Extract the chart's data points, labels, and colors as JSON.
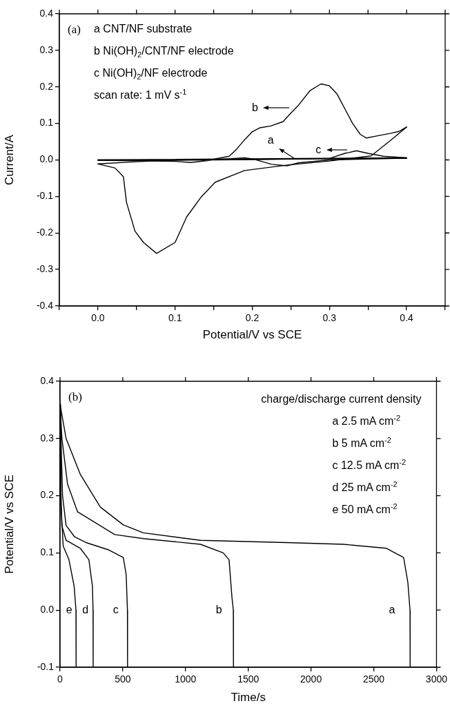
{
  "chart_data": [
    {
      "type": "line",
      "xlabel": "Potential/V vs SCE",
      "ylabel": "Current/A",
      "grid": false,
      "legend": false,
      "marker": "none",
      "line_style": "solid",
      "xlim": [
        -0.05,
        0.45
      ],
      "xticks": [
        {
          "value": -0.05,
          "label": null
        },
        {
          "value": 0,
          "label": "0.0"
        },
        {
          "value": 0.05,
          "label": null
        },
        0.1,
        {
          "value": 0.15,
          "label": null
        },
        0.2,
        {
          "value": 0.25,
          "label": null
        },
        0.3,
        {
          "value": 0.35,
          "label": null
        },
        0.4,
        {
          "value": 0.45,
          "label": null
        }
      ],
      "ylim": [
        -0.4,
        0.4
      ],
      "yticks": [
        -0.4,
        -0.3,
        -0.2,
        -0.1,
        {
          "value": 0,
          "label": "0.0"
        },
        0.1,
        0.2,
        0.3,
        0.4
      ],
      "series": [
        {
          "color": "#000000",
          "x": [
            0,
            0.256,
            0.4,
            0.4,
            0
          ],
          "values": [
            0,
            0.004,
            0.006,
            0.004,
            -0.001
          ]
        },
        {
          "color": "#000000",
          "x": [
            0,
            0.05,
            0.1,
            0.15,
            0.17,
            0.18,
            0.19,
            0.2,
            0.21,
            0.224,
            0.24,
            0.25,
            0.26,
            0.275,
            0.289,
            0.3,
            0.31,
            0.32,
            0.33,
            0.34,
            0.348,
            0.36,
            0.38,
            0.39,
            0.4
          ],
          "values": [
            -0.011,
            -0.005,
            0,
            0.002,
            0.01,
            0.03,
            0.055,
            0.077,
            0.088,
            0.093,
            0.105,
            0.128,
            0.15,
            0.19,
            0.208,
            0.203,
            0.18,
            0.14,
            0.1,
            0.07,
            0.06,
            0.065,
            0.073,
            0.078,
            0.09
          ]
        },
        {
          "color": "#000000",
          "x": [
            0.4,
            0.38,
            0.354,
            0.3,
            0.246,
            0.19,
            0.152,
            0.134,
            0.115,
            0.1,
            0.076,
            0.059,
            0.048,
            0.037,
            0.033,
            0.022,
            0
          ],
          "values": [
            0.09,
            0.055,
            0.011,
            -0.003,
            -0.014,
            -0.029,
            -0.061,
            -0.101,
            -0.156,
            -0.226,
            -0.256,
            -0.226,
            -0.195,
            -0.116,
            -0.046,
            -0.022,
            -0.011
          ]
        },
        {
          "color": "#000000",
          "x": [
            0,
            0.1,
            0.2,
            0.3,
            0.32,
            0.325,
            0.335,
            0.35,
            0.37,
            0.4,
            0.4,
            0.3,
            0.26,
            0.245,
            0.225,
            0.2,
            0.19,
            0.15,
            0.12,
            0.1,
            0
          ],
          "values": [
            0,
            -0.001,
            0.001,
            0.004,
            0.018,
            0.02,
            0.025,
            0.018,
            0.01,
            0.006,
            0.005,
            0,
            -0.008,
            -0.016,
            -0.012,
            0.003,
            0.006,
            0,
            -0.007,
            -0.004,
            -0.001
          ]
        }
      ],
      "annotations": [
        "(a)",
        "a CNT/NF substrate",
        "b Ni(OH)$_{2}$/CNT/NF electrode",
        "c Ni(OH)$_{2}$/NF electrode",
        "scan rate: 1 mV s$^{-1}$",
        {
          "text": "b",
          "x": 0.25,
          "y": 0.128
        },
        {
          "text": "a",
          "x": 0.256,
          "y": 0.004
        },
        {
          "text": "c",
          "x": 0.325,
          "y": 0.02
        }
      ]
    },
    {
      "type": "line",
      "xlabel": "Time/s",
      "ylabel": "Potential/V vs SCE",
      "grid": false,
      "legend": false,
      "marker": "none",
      "line_style": "solid",
      "xlim": [
        0,
        3000
      ],
      "xticks": [
        0,
        500,
        1000,
        1500,
        2000,
        2500,
        3000
      ],
      "ylim": [
        -0.1,
        0.4
      ],
      "yticks": [
        -0.1,
        {
          "value": 0,
          "label": "0.0"
        },
        0.1,
        0.2,
        0.3,
        0.4
      ],
      "series": [
        {
          "color": "#000000",
          "x": [
            0,
            48,
            162,
            321,
            504,
            663,
            1119,
            1803,
            2259,
            2601,
            2738,
            2772,
            2789,
            2790
          ],
          "values": [
            0.36,
            0.3,
            0.237,
            0.18,
            0.149,
            0.135,
            0.122,
            0.118,
            0.115,
            0.108,
            0.092,
            0.048,
            0,
            -0.1
          ]
        },
        {
          "color": "#000000",
          "x": [
            0,
            15,
            60,
            139,
            435,
            663,
            1119,
            1300,
            1347,
            1370,
            1381,
            1382
          ],
          "values": [
            0.36,
            0.3,
            0.22,
            0.172,
            0.132,
            0.125,
            0.115,
            0.1,
            0.088,
            0.022,
            0,
            -0.1
          ]
        },
        {
          "color": "#000000",
          "x": [
            0,
            20,
            48,
            116,
            207,
            390,
            504,
            527,
            537,
            538
          ],
          "values": [
            0.36,
            0.2,
            0.148,
            0.128,
            0.118,
            0.105,
            0.092,
            0.062,
            0,
            -0.1
          ]
        },
        {
          "color": "#000000",
          "x": [
            0,
            8,
            14,
            48,
            162,
            230,
            258,
            263,
            264
          ],
          "values": [
            0.36,
            0.2,
            0.148,
            0.122,
            0.108,
            0.088,
            0.042,
            0,
            -0.1
          ]
        },
        {
          "color": "#000000",
          "x": [
            0,
            4,
            25,
            71,
            112,
            127,
            128
          ],
          "values": [
            0.36,
            0.2,
            0.112,
            0.088,
            0.042,
            0,
            -0.1
          ]
        }
      ],
      "annotations": [
        "(b)",
        "charge/discharge current density",
        "a 2.5 mA cm$^{-2}$",
        "b 5 mA cm$^{-2}$",
        "c 12.5 mA cm$^{-2}$",
        "d 25 mA cm$^{-2}$",
        "e 50 mA cm$^{-2}$",
        {
          "text": "e",
          "x": 127,
          "y": 0
        },
        {
          "text": "d",
          "x": 263,
          "y": 0
        },
        {
          "text": "c",
          "x": 537,
          "y": 0
        },
        {
          "text": "b",
          "x": 1381,
          "y": 0
        },
        {
          "text": "a",
          "x": 2789,
          "y": 0
        }
      ]
    }
  ]
}
